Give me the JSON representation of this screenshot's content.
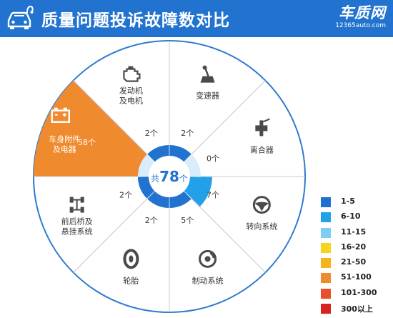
{
  "header": {
    "title": "质量问题投诉故障数对比",
    "brand_name": "车质网",
    "brand_url": "12365auto.com",
    "color": "#2173cf",
    "logo_icon": "car-stethoscope-icon"
  },
  "chart_data": {
    "type": "pie",
    "title": "质量问题投诉故障数对比",
    "total_label": [
      "共",
      "78",
      "个"
    ],
    "unit": "个",
    "categories": [
      {
        "name": [
          "变速器"
        ],
        "value": 2,
        "value_label": "2个",
        "icon": "gear-shifter-icon"
      },
      {
        "name": [
          "离合器"
        ],
        "value": 0,
        "value_label": "0个",
        "icon": "clutch-icon"
      },
      {
        "name": [
          "转向系统"
        ],
        "value": 7,
        "value_label": "7个",
        "icon": "steering-wheel-icon"
      },
      {
        "name": [
          "制动系统"
        ],
        "value": 5,
        "value_label": "5个",
        "icon": "brake-disc-icon"
      },
      {
        "name": [
          "轮胎"
        ],
        "value": 2,
        "value_label": "2个",
        "icon": "tire-icon"
      },
      {
        "name": [
          "前后桥及",
          "悬挂系统"
        ],
        "value": 2,
        "value_label": "2个",
        "icon": "chassis-axle-icon"
      },
      {
        "name": [
          "车身附件",
          "及电器"
        ],
        "value": 58,
        "value_label": "58个",
        "icon": "battery-icon"
      },
      {
        "name": [
          "发动机",
          "及电机"
        ],
        "value": 2,
        "value_label": "2个",
        "icon": "engine-icon"
      }
    ],
    "legend": [
      {
        "label": "1-5",
        "color": "#1f6fd1"
      },
      {
        "label": "6-10",
        "color": "#22a1ea"
      },
      {
        "label": "11-15",
        "color": "#7fcdf3"
      },
      {
        "label": "16-20",
        "color": "#f7d518"
      },
      {
        "label": "21-50",
        "color": "#f5b31c"
      },
      {
        "label": "51-100",
        "color": "#f08a2e"
      },
      {
        "label": "101-300",
        "color": "#e8502c"
      },
      {
        "label": "300以上",
        "color": "#d8231e"
      }
    ],
    "legend_position": "bottom-right"
  }
}
